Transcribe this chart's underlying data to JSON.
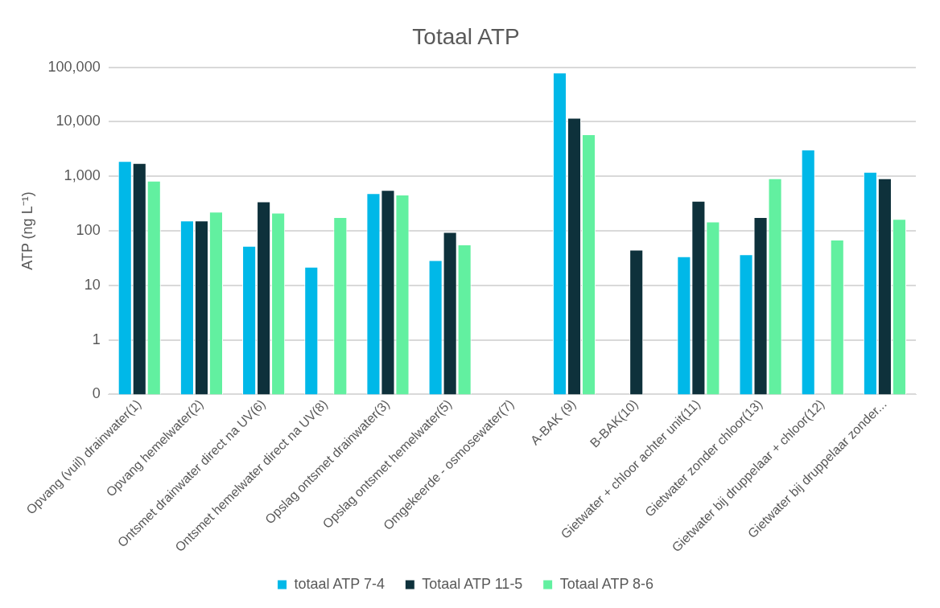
{
  "chart_data": {
    "type": "bar",
    "title": "Totaal ATP",
    "ylabel": "ATP (ng L⁻¹)",
    "categories": [
      "Opvang (vuil) drainwater(1)",
      "Opvang hemelwater(2)",
      "Ontsmet drainwater direct na UV(6)",
      "Ontsmet hemelwater direct na UV(8)",
      "Opslag ontsmet drainwater(3)",
      "Opslag ontsmet hemelwater(5)",
      "Omgekeerde - osmosewater(7)",
      "A-BAK (9)",
      "B-BAK(10)",
      "Gietwater + chloor achter unit(11)",
      "Gietwater zonder chloor(13)",
      "Gietwater bij druppelaar + chloor(12)",
      "Gietwater bij druppelaar zonder..."
    ],
    "series": [
      {
        "name": "totaal ATP 7-4",
        "color": "#00b8e8",
        "values": [
          1900,
          155,
          53,
          22,
          490,
          29,
          null,
          80000,
          null,
          34,
          37,
          3100,
          1200
        ]
      },
      {
        "name": "Totaal ATP 11-5",
        "color": "#0e313b",
        "values": [
          1750,
          155,
          345,
          null,
          560,
          95,
          null,
          11800,
          45,
          355,
          178,
          null,
          920
        ]
      },
      {
        "name": "Totaal ATP 8-6",
        "color": "#62f0a0",
        "values": [
          830,
          225,
          215,
          178,
          460,
          56,
          null,
          5900,
          null,
          148,
          920,
          69,
          165
        ]
      }
    ],
    "log": true,
    "ylim": [
      0.1,
      100000
    ],
    "yticks": [
      {
        "value": 0.1,
        "label": "0"
      },
      1,
      10,
      100,
      {
        "value": 1000,
        "label": "1,000"
      },
      {
        "value": 10000,
        "label": "10,000"
      },
      {
        "value": 100000,
        "label": "100,000"
      }
    ],
    "grid": "y",
    "legend": "bottom"
  }
}
